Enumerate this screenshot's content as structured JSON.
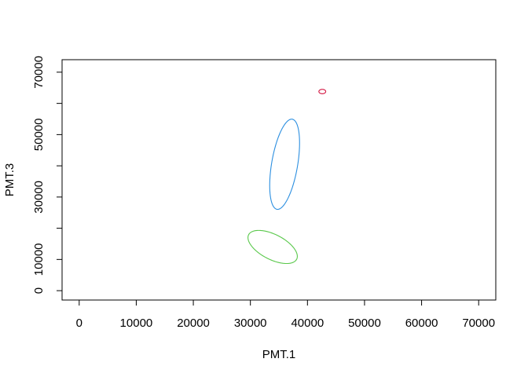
{
  "chart_data": {
    "type": "scatter",
    "title": "",
    "xlabel": "PMT.1",
    "ylabel": "PMT.3",
    "xlim": [
      -3000,
      73000
    ],
    "ylim": [
      -3000,
      74000
    ],
    "xticks": [
      0,
      10000,
      20000,
      30000,
      40000,
      50000,
      60000,
      70000
    ],
    "yticks": [
      0,
      10000,
      30000,
      50000,
      70000
    ],
    "ymarks": [
      0,
      10000,
      20000,
      30000,
      40000,
      50000,
      60000,
      70000
    ],
    "grid": false,
    "legend": "none",
    "ellipses": [
      {
        "color": "#D2113E",
        "cx": 42600,
        "cy": 63800,
        "rx": 600,
        "ry": 700,
        "angle_deg": 0
      },
      {
        "color": "#2C8FE0",
        "cx": 36000,
        "cy": 40500,
        "rx": 2300,
        "ry": 14500,
        "angle_deg": -5
      },
      {
        "color": "#59C84A",
        "cx": 33900,
        "cy": 14000,
        "rx": 3100,
        "ry": 6100,
        "angle_deg": 35
      }
    ]
  }
}
